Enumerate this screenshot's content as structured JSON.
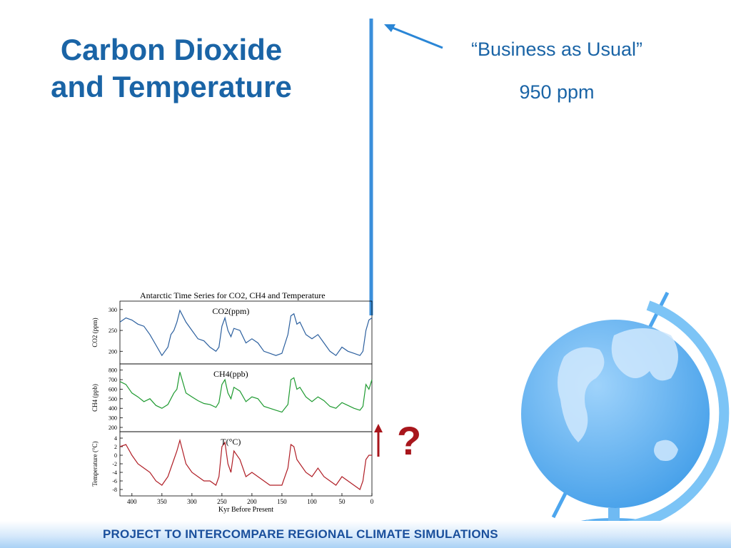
{
  "slide": {
    "title_line1": "Carbon Dioxide",
    "title_line2": "and Temperature",
    "annotation_label": "“Business as Usual”",
    "annotation_value": "950 ppm",
    "question_mark": "?",
    "footer": "PROJECT TO INTERCOMPARE REGIONAL CLIMATE SIMULATIONS"
  },
  "colors": {
    "title": "#1a64a6",
    "projection_line": "#3a8fdb",
    "co2_series": "#2b5f9e",
    "ch4_series": "#1e9a30",
    "temp_series": "#b01e26",
    "question": "#a8161c",
    "globe": "#5aaef0"
  },
  "chart_data": {
    "type": "line",
    "title": "Antarctic Time Series for CO2, CH4 and Temperature",
    "xlabel": "Kyr Before Present",
    "x_ticks": [
      "400",
      "350",
      "300",
      "250",
      "200",
      "150",
      "100",
      "50",
      "0"
    ],
    "xlim": [
      420,
      0
    ],
    "panels": [
      {
        "name": "CO2(ppm)",
        "ylabel": "CO2 (ppm)",
        "ylim": [
          180,
          310
        ],
        "y_ticks": [
          "300",
          "250",
          "200"
        ],
        "x": [
          420,
          410,
          400,
          390,
          380,
          370,
          360,
          350,
          340,
          335,
          330,
          325,
          320,
          310,
          300,
          290,
          280,
          270,
          260,
          255,
          250,
          245,
          240,
          235,
          230,
          220,
          210,
          200,
          190,
          180,
          170,
          160,
          150,
          140,
          135,
          130,
          125,
          120,
          110,
          100,
          90,
          80,
          70,
          60,
          50,
          40,
          30,
          20,
          15,
          10,
          5,
          0
        ],
        "values": [
          270,
          280,
          275,
          265,
          260,
          240,
          215,
          190,
          210,
          240,
          250,
          270,
          298,
          270,
          250,
          230,
          225,
          210,
          200,
          210,
          260,
          280,
          250,
          235,
          255,
          250,
          220,
          230,
          220,
          200,
          195,
          190,
          195,
          240,
          285,
          290,
          265,
          270,
          240,
          230,
          240,
          220,
          200,
          190,
          210,
          200,
          195,
          190,
          200,
          250,
          275,
          280
        ]
      },
      {
        "name": "CH4(ppb)",
        "ylabel": "CH4 (ppb)",
        "ylim": [
          200,
          820
        ],
        "y_ticks": [
          "800",
          "700",
          "600",
          "500",
          "400",
          "300",
          "200"
        ],
        "x": [
          420,
          410,
          400,
          390,
          380,
          370,
          360,
          350,
          340,
          335,
          330,
          325,
          320,
          310,
          300,
          290,
          280,
          270,
          260,
          255,
          250,
          245,
          240,
          235,
          230,
          220,
          210,
          200,
          190,
          180,
          170,
          160,
          150,
          140,
          135,
          130,
          125,
          120,
          110,
          100,
          90,
          80,
          70,
          60,
          50,
          40,
          30,
          20,
          15,
          10,
          5,
          0
        ],
        "values": [
          680,
          650,
          560,
          520,
          470,
          500,
          430,
          400,
          440,
          500,
          560,
          600,
          780,
          560,
          520,
          480,
          450,
          440,
          410,
          460,
          650,
          700,
          560,
          500,
          620,
          580,
          470,
          520,
          500,
          420,
          400,
          380,
          360,
          440,
          700,
          720,
          600,
          620,
          520,
          470,
          520,
          480,
          420,
          400,
          460,
          430,
          400,
          380,
          420,
          650,
          600,
          700
        ]
      },
      {
        "name": "T(°C)",
        "ylabel": "Temperature (°C)",
        "ylim": [
          -8.5,
          4.5
        ],
        "y_ticks": [
          "4",
          "2",
          "0",
          "-2",
          "-4",
          "-6",
          "-8"
        ],
        "x": [
          420,
          410,
          400,
          390,
          380,
          370,
          360,
          350,
          340,
          335,
          330,
          325,
          320,
          310,
          300,
          290,
          280,
          270,
          260,
          255,
          250,
          245,
          240,
          235,
          230,
          220,
          210,
          200,
          190,
          180,
          170,
          160,
          150,
          140,
          135,
          130,
          125,
          120,
          110,
          100,
          90,
          80,
          70,
          60,
          50,
          40,
          30,
          20,
          15,
          10,
          5,
          0
        ],
        "values": [
          2,
          2.5,
          0,
          -2,
          -3,
          -4,
          -6,
          -7,
          -5,
          -3,
          -1,
          1,
          3.5,
          -2,
          -4,
          -5,
          -6,
          -6,
          -7,
          -5,
          2,
          3,
          -2,
          -4,
          1,
          -1,
          -5,
          -4,
          -5,
          -6,
          -7,
          -7,
          -7,
          -3,
          2.5,
          2,
          -1,
          -2,
          -4,
          -5,
          -3,
          -5,
          -6,
          -7,
          -5,
          -6,
          -7,
          -8,
          -6,
          -1,
          0,
          0
        ]
      }
    ]
  }
}
